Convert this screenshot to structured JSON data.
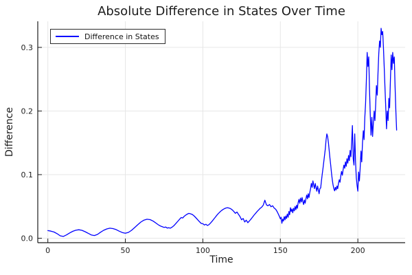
{
  "colors": {
    "line": "#0000ff",
    "grid": "#e6e6e6",
    "axis": "#1a1a1a",
    "tick_text": "#1c1c1c"
  },
  "chart_data": {
    "type": "line",
    "title": "Absolute Difference in States Over Time",
    "xlabel": "Time",
    "ylabel": "Difference",
    "xlim": [
      -6.5,
      230.5
    ],
    "ylim": [
      -0.007,
      0.341
    ],
    "grid": true,
    "legend_position": "top-left",
    "xticks": {
      "values": [
        0,
        50,
        100,
        150,
        200
      ],
      "labels": [
        "0",
        "50",
        "100",
        "150",
        "200"
      ]
    },
    "yticks": {
      "values": [
        0,
        0.1,
        0.2,
        0.3
      ],
      "labels": [
        "0.0",
        "0.1",
        "0.2",
        "0.3"
      ]
    },
    "series": [
      {
        "name": "Difference in States",
        "color": "#0000ff",
        "points": [
          [
            0,
            0.012
          ],
          [
            2,
            0.0112
          ],
          [
            4,
            0.0098
          ],
          [
            6,
            0.0072
          ],
          [
            8,
            0.0038
          ],
          [
            10,
            0.0028
          ],
          [
            12,
            0.0052
          ],
          [
            14,
            0.0082
          ],
          [
            16,
            0.0108
          ],
          [
            18,
            0.0126
          ],
          [
            20,
            0.0133
          ],
          [
            22,
            0.0125
          ],
          [
            24,
            0.0103
          ],
          [
            26,
            0.0078
          ],
          [
            28,
            0.0052
          ],
          [
            30,
            0.0042
          ],
          [
            32,
            0.006
          ],
          [
            34,
            0.0094
          ],
          [
            36,
            0.0124
          ],
          [
            38,
            0.0146
          ],
          [
            40,
            0.0158
          ],
          [
            42,
            0.0152
          ],
          [
            44,
            0.0136
          ],
          [
            46,
            0.0112
          ],
          [
            48,
            0.009
          ],
          [
            50,
            0.0078
          ],
          [
            52,
            0.0092
          ],
          [
            54,
            0.0124
          ],
          [
            56,
            0.0168
          ],
          [
            58,
            0.0212
          ],
          [
            60,
            0.0254
          ],
          [
            62,
            0.0284
          ],
          [
            64,
            0.0298
          ],
          [
            66,
            0.0292
          ],
          [
            68,
            0.0268
          ],
          [
            70,
            0.0234
          ],
          [
            71,
            0.0216
          ],
          [
            72,
            0.02
          ],
          [
            73,
            0.0188
          ],
          [
            74,
            0.018
          ],
          [
            75,
            0.017
          ],
          [
            76,
            0.0176
          ],
          [
            77,
            0.016
          ],
          [
            78,
            0.0165
          ],
          [
            79,
            0.0158
          ],
          [
            80,
            0.0172
          ],
          [
            81,
            0.019
          ],
          [
            82,
            0.0215
          ],
          [
            83,
            0.0242
          ],
          [
            84,
            0.027
          ],
          [
            85,
            0.03
          ],
          [
            86,
            0.0326
          ],
          [
            87,
            0.0318
          ],
          [
            88,
            0.0345
          ],
          [
            89,
            0.0365
          ],
          [
            90,
            0.038
          ],
          [
            91,
            0.039
          ],
          [
            92,
            0.0384
          ],
          [
            93,
            0.0376
          ],
          [
            94,
            0.0358
          ],
          [
            95,
            0.0335
          ],
          [
            96,
            0.0308
          ],
          [
            97,
            0.0282
          ],
          [
            98,
            0.0255
          ],
          [
            99,
            0.0232
          ],
          [
            100,
            0.0228
          ],
          [
            101,
            0.0208
          ],
          [
            102,
            0.022
          ],
          [
            103,
            0.02
          ],
          [
            104,
            0.0214
          ],
          [
            105,
            0.024
          ],
          [
            106,
            0.0268
          ],
          [
            107,
            0.0298
          ],
          [
            108,
            0.033
          ],
          [
            109,
            0.036
          ],
          [
            110,
            0.0388
          ],
          [
            111,
            0.0412
          ],
          [
            112,
            0.0435
          ],
          [
            113,
            0.0452
          ],
          [
            114,
            0.0466
          ],
          [
            115,
            0.0476
          ],
          [
            116,
            0.048
          ],
          [
            117,
            0.0474
          ],
          [
            118,
            0.0464
          ],
          [
            119,
            0.0446
          ],
          [
            120,
            0.042
          ],
          [
            121,
            0.0392
          ],
          [
            122,
            0.0412
          ],
          [
            123,
            0.0375
          ],
          [
            124,
            0.034
          ],
          [
            125,
            0.029
          ],
          [
            126,
            0.031
          ],
          [
            127,
            0.0255
          ],
          [
            128,
            0.0285
          ],
          [
            129,
            0.0245
          ],
          [
            130,
            0.027
          ],
          [
            131,
            0.03
          ],
          [
            132,
            0.033
          ],
          [
            133,
            0.0362
          ],
          [
            134,
            0.0392
          ],
          [
            135,
            0.042
          ],
          [
            136,
            0.0445
          ],
          [
            137,
            0.047
          ],
          [
            138,
            0.049
          ],
          [
            139,
            0.052
          ],
          [
            140,
            0.0598
          ],
          [
            141,
            0.0525
          ],
          [
            142,
            0.051
          ],
          [
            143,
            0.053
          ],
          [
            144,
            0.0495
          ],
          [
            145,
            0.051
          ],
          [
            146,
            0.0475
          ],
          [
            147,
            0.0455
          ],
          [
            148,
            0.0415
          ],
          [
            149,
            0.0365
          ],
          [
            150,
            0.0305
          ],
          [
            150.5,
            0.033
          ],
          [
            151,
            0.0235
          ],
          [
            151.5,
            0.03
          ],
          [
            152,
            0.027
          ],
          [
            152.5,
            0.034
          ],
          [
            153,
            0.029
          ],
          [
            153.5,
            0.035
          ],
          [
            154,
            0.031
          ],
          [
            154.5,
            0.038
          ],
          [
            155,
            0.033
          ],
          [
            155.5,
            0.042
          ],
          [
            156,
            0.037
          ],
          [
            156.5,
            0.048
          ],
          [
            157,
            0.042
          ],
          [
            157.5,
            0.046
          ],
          [
            158,
            0.04
          ],
          [
            158.5,
            0.047
          ],
          [
            159,
            0.043
          ],
          [
            159.5,
            0.05
          ],
          [
            160,
            0.045
          ],
          [
            160.5,
            0.052
          ],
          [
            161,
            0.047
          ],
          [
            161.5,
            0.056
          ],
          [
            162,
            0.061
          ],
          [
            162.5,
            0.055
          ],
          [
            163,
            0.063
          ],
          [
            163.5,
            0.057
          ],
          [
            164,
            0.064
          ],
          [
            164.5,
            0.058
          ],
          [
            165,
            0.053
          ],
          [
            165.5,
            0.06
          ],
          [
            166,
            0.055
          ],
          [
            166.5,
            0.062
          ],
          [
            167,
            0.068
          ],
          [
            167.5,
            0.062
          ],
          [
            168,
            0.07
          ],
          [
            168.5,
            0.064
          ],
          [
            169,
            0.072
          ],
          [
            169.5,
            0.078
          ],
          [
            170,
            0.086
          ],
          [
            170.5,
            0.08
          ],
          [
            171,
            0.09
          ],
          [
            171.5,
            0.084
          ],
          [
            172,
            0.078
          ],
          [
            172.5,
            0.086
          ],
          [
            173,
            0.08
          ],
          [
            173.5,
            0.074
          ],
          [
            174,
            0.082
          ],
          [
            174.5,
            0.076
          ],
          [
            175,
            0.07
          ],
          [
            175.5,
            0.078
          ],
          [
            176,
            0.079
          ],
          [
            176.5,
            0.09
          ],
          [
            177,
            0.1
          ],
          [
            177.5,
            0.11
          ],
          [
            178,
            0.12
          ],
          [
            178.5,
            0.13
          ],
          [
            179,
            0.14
          ],
          [
            179.5,
            0.155
          ],
          [
            180,
            0.164
          ],
          [
            180.5,
            0.16
          ],
          [
            181,
            0.15
          ],
          [
            181.5,
            0.138
          ],
          [
            182,
            0.126
          ],
          [
            182.5,
            0.115
          ],
          [
            183,
            0.102
          ],
          [
            183.5,
            0.092
          ],
          [
            184,
            0.084
          ],
          [
            184.5,
            0.078
          ],
          [
            185,
            0.0745
          ],
          [
            185.5,
            0.08
          ],
          [
            186,
            0.076
          ],
          [
            186.5,
            0.082
          ],
          [
            187,
            0.078
          ],
          [
            187.5,
            0.086
          ],
          [
            188,
            0.092
          ],
          [
            188.5,
            0.088
          ],
          [
            189,
            0.098
          ],
          [
            189.5,
            0.105
          ],
          [
            190,
            0.099
          ],
          [
            190.5,
            0.108
          ],
          [
            191,
            0.115
          ],
          [
            191.5,
            0.11
          ],
          [
            192,
            0.12
          ],
          [
            192.5,
            0.113
          ],
          [
            193,
            0.125
          ],
          [
            193.5,
            0.118
          ],
          [
            194,
            0.13
          ],
          [
            194.5,
            0.122
          ],
          [
            195,
            0.138
          ],
          [
            195.5,
            0.128
          ],
          [
            196,
            0.15
          ],
          [
            196.5,
            0.177
          ],
          [
            197,
            0.125
          ],
          [
            197.5,
            0.115
          ],
          [
            198,
            0.164
          ],
          [
            198.5,
            0.12
          ],
          [
            199,
            0.095
          ],
          [
            199.5,
            0.083
          ],
          [
            200,
            0.074
          ],
          [
            200.5,
            0.104
          ],
          [
            201,
            0.09
          ],
          [
            201.5,
            0.11
          ],
          [
            202,
            0.137
          ],
          [
            202.5,
            0.12
          ],
          [
            203,
            0.15
          ],
          [
            203.5,
            0.169
          ],
          [
            204,
            0.155
          ],
          [
            204.5,
            0.19
          ],
          [
            205,
            0.212
          ],
          [
            205.5,
            0.25
          ],
          [
            206,
            0.292
          ],
          [
            206.5,
            0.27
          ],
          [
            207,
            0.285
          ],
          [
            207.5,
            0.235
          ],
          [
            208,
            0.195
          ],
          [
            208.5,
            0.162
          ],
          [
            209,
            0.19
          ],
          [
            209.5,
            0.16
          ],
          [
            210,
            0.18
          ],
          [
            210.5,
            0.2
          ],
          [
            211,
            0.185
          ],
          [
            211.5,
            0.21
          ],
          [
            212,
            0.24
          ],
          [
            212.5,
            0.225
          ],
          [
            213,
            0.26
          ],
          [
            213.5,
            0.29
          ],
          [
            214,
            0.31
          ],
          [
            214.5,
            0.3
          ],
          [
            215,
            0.33
          ],
          [
            215.5,
            0.32
          ],
          [
            216,
            0.325
          ],
          [
            216.5,
            0.3
          ],
          [
            217,
            0.27
          ],
          [
            217.5,
            0.235
          ],
          [
            218,
            0.205
          ],
          [
            218.5,
            0.172
          ],
          [
            219,
            0.2
          ],
          [
            219.5,
            0.185
          ],
          [
            220,
            0.22
          ],
          [
            220.5,
            0.205
          ],
          [
            221,
            0.25
          ],
          [
            221.5,
            0.288
          ],
          [
            222,
            0.265
          ],
          [
            222.5,
            0.292
          ],
          [
            223,
            0.275
          ],
          [
            223.5,
            0.285
          ],
          [
            224,
            0.24
          ],
          [
            224.5,
            0.2
          ],
          [
            225,
            0.17
          ]
        ]
      }
    ]
  }
}
